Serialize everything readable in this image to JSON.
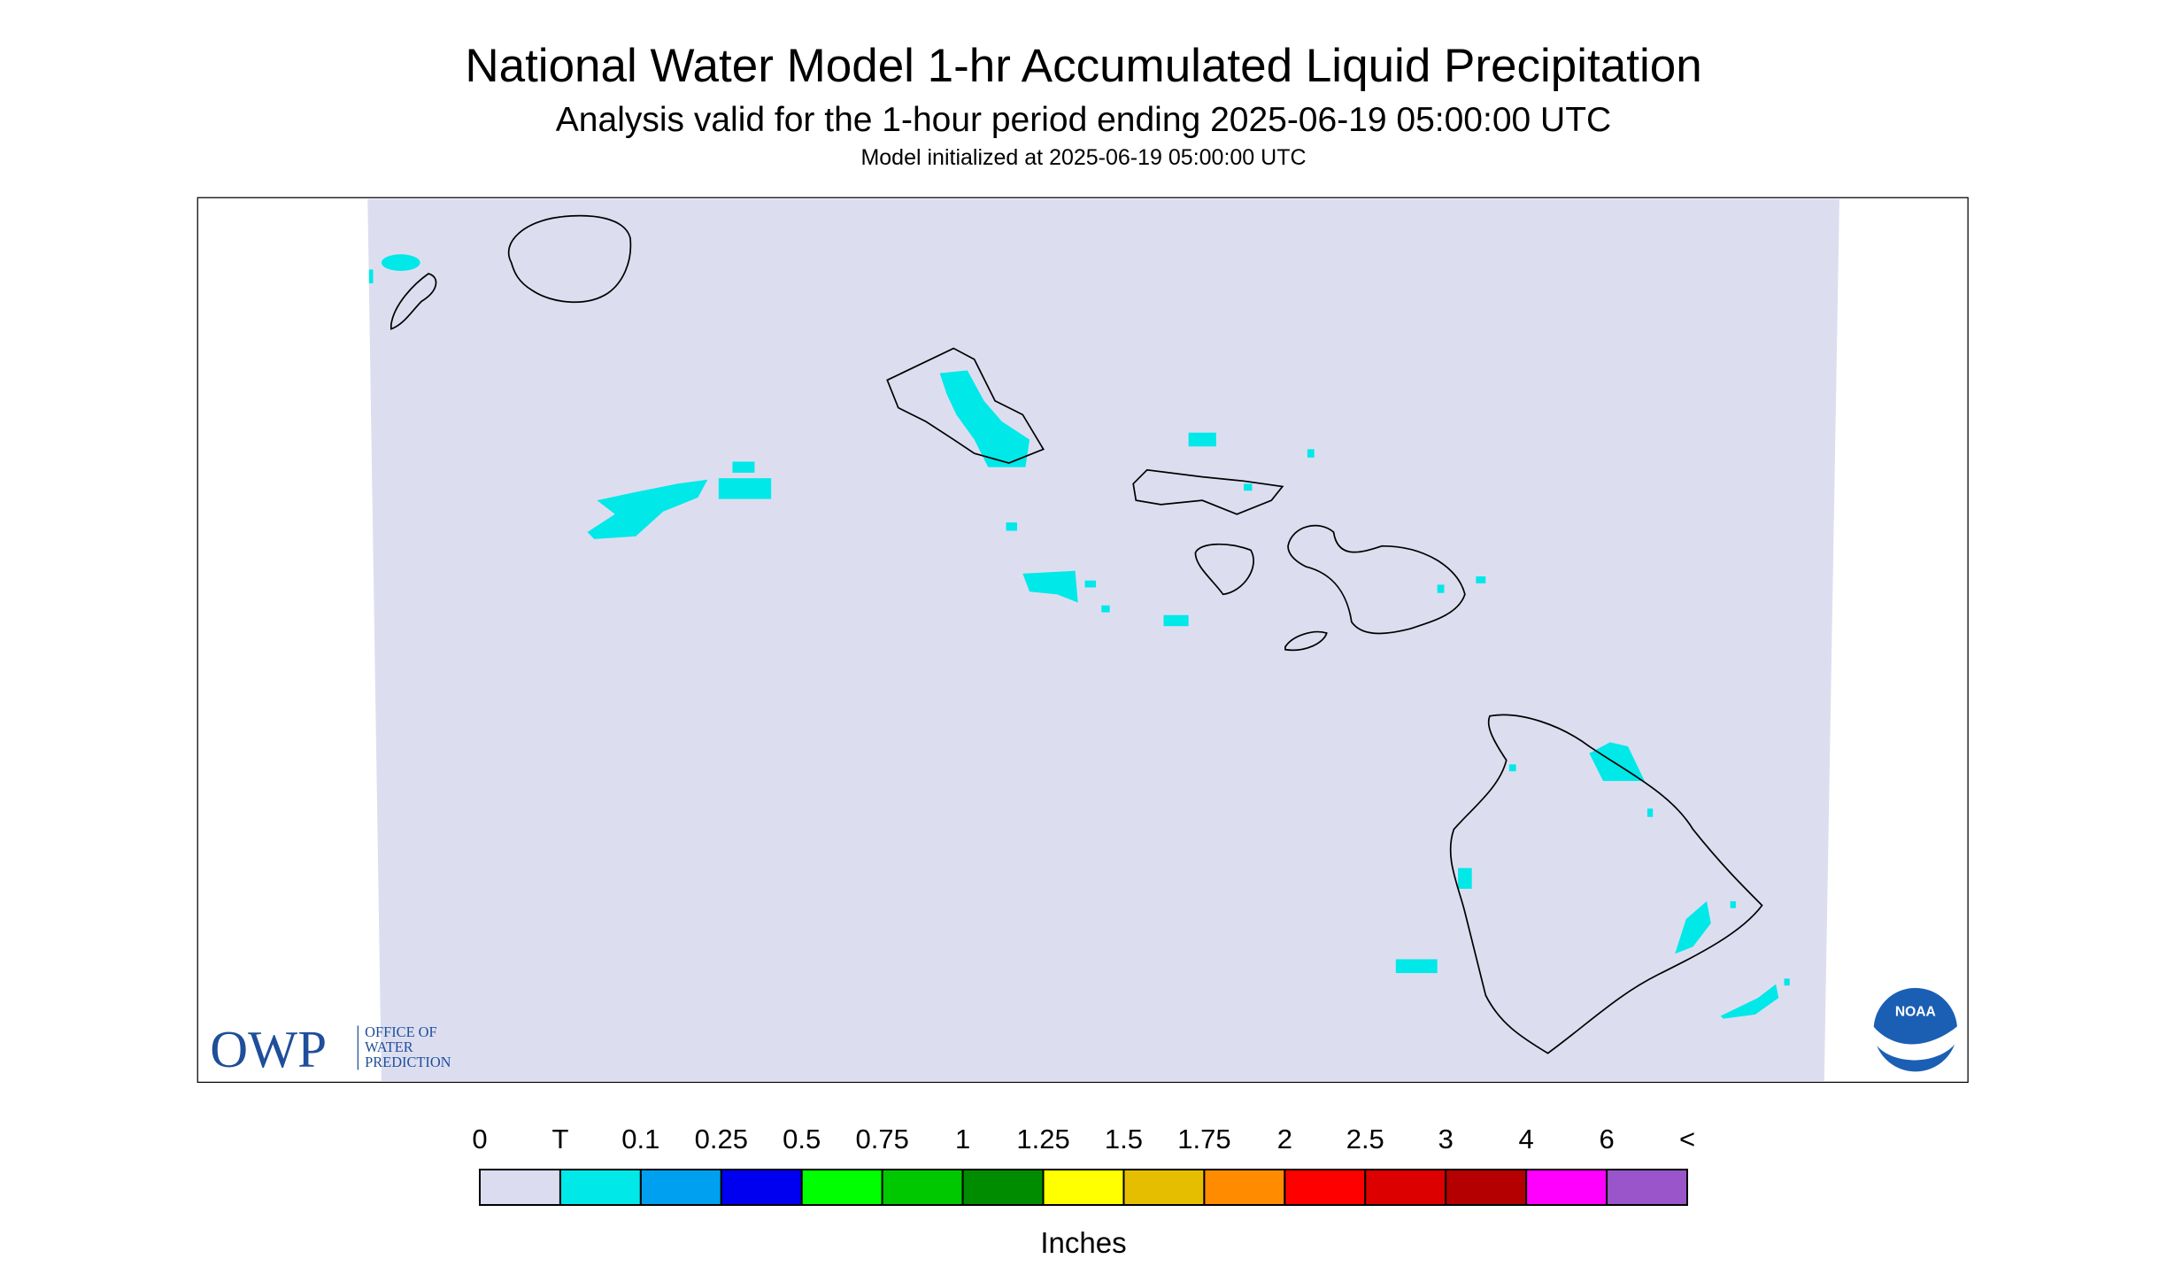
{
  "header": {
    "title": "National Water Model 1-hr Accumulated Liquid Precipitation",
    "subtitle": "Analysis valid for the 1-hour period ending 2025-06-19 05:00:00 UTC",
    "init": "Model initialized at 2025-06-19 05:00:00 UTC"
  },
  "legend": {
    "labels": [
      "0",
      "T",
      "0.1",
      "0.25",
      "0.5",
      "0.75",
      "1",
      "1.25",
      "1.5",
      "1.75",
      "2",
      "2.5",
      "3",
      "4",
      "6",
      "<"
    ],
    "colors": [
      "#dcdcf0",
      "#00e8e8",
      "#00a0f0",
      "#0000f0",
      "#00ff00",
      "#00c800",
      "#008c00",
      "#ffff00",
      "#e6be00",
      "#ff8c00",
      "#ff0000",
      "#dc0000",
      "#b40000",
      "#ff00ff",
      "#9955c9"
    ],
    "unit": "Inches"
  },
  "logos": {
    "owp": "OWP",
    "owp_lines": [
      "OFFICE OF",
      "WATER",
      "PREDICTION"
    ],
    "noaa": "NOAA"
  }
}
